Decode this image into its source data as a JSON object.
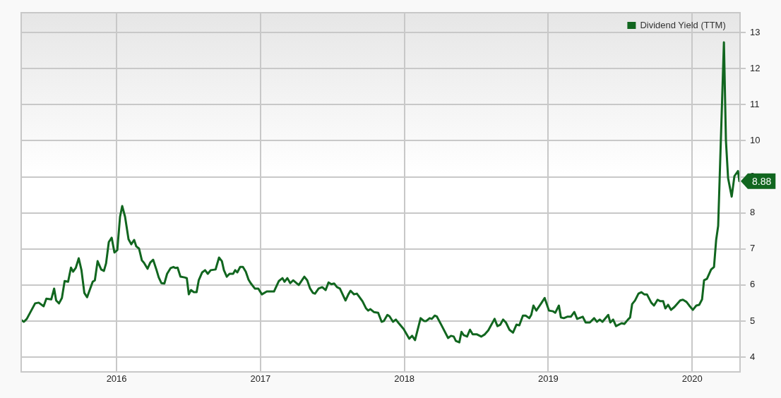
{
  "chart_data": {
    "type": "line",
    "legend": "top right",
    "grid": true,
    "marker": "none",
    "line_style": "solid",
    "xlim": [
      2015.337,
      2020.333
    ],
    "xticks": [
      2016,
      2017,
      2018,
      2019,
      2020
    ],
    "ylim": [
      3.59,
      13.55
    ],
    "yticks": [
      4,
      5,
      6,
      7,
      8,
      9,
      10,
      11,
      12,
      13
    ],
    "annotations": [
      {
        "text": "8.88",
        "x": 2020.328,
        "y": 8.88
      }
    ],
    "series": [
      {
        "name": "Dividend Yield (TTM)",
        "color": "#11661f",
        "x": [
          2015.337,
          2015.356,
          2015.376,
          2015.434,
          2015.459,
          2015.493,
          2015.512,
          2015.546,
          2015.566,
          2015.58,
          2015.6,
          2015.62,
          2015.639,
          2015.663,
          2015.683,
          2015.698,
          2015.717,
          2015.737,
          2015.756,
          2015.776,
          2015.795,
          2015.834,
          2015.849,
          2015.868,
          2015.893,
          2015.912,
          2015.927,
          2015.946,
          2015.966,
          2015.985,
          2016.005,
          2016.024,
          2016.039,
          2016.059,
          2016.083,
          2016.102,
          2016.122,
          2016.137,
          2016.156,
          2016.176,
          2016.19,
          2016.215,
          2016.234,
          2016.254,
          2016.278,
          2016.293,
          2016.312,
          2016.332,
          2016.351,
          2016.376,
          2016.395,
          2016.41,
          2016.424,
          2016.444,
          2016.473,
          2016.488,
          2016.502,
          2016.517,
          2016.537,
          2016.556,
          2016.571,
          2016.595,
          2016.615,
          2016.634,
          2016.654,
          2016.688,
          2016.712,
          2016.732,
          2016.746,
          2016.766,
          2016.785,
          2016.81,
          2016.824,
          2016.839,
          2016.859,
          2016.878,
          2016.898,
          2016.917,
          2016.932,
          2016.961,
          2016.985,
          2017.01,
          2017.044,
          2017.094,
          2017.128,
          2017.153,
          2017.167,
          2017.187,
          2017.207,
          2017.227,
          2017.266,
          2017.305,
          2017.325,
          2017.345,
          2017.365,
          2017.379,
          2017.404,
          2017.429,
          2017.453,
          2017.473,
          2017.493,
          2017.512,
          2017.532,
          2017.552,
          2017.591,
          2017.611,
          2017.626,
          2017.65,
          2017.67,
          2017.709,
          2017.734,
          2017.749,
          2017.764,
          2017.788,
          2017.818,
          2017.842,
          2017.857,
          2017.882,
          2017.897,
          2017.921,
          2017.941,
          2017.961,
          2017.995,
          2018.034,
          2018.054,
          2018.074,
          2018.113,
          2018.137,
          2018.152,
          2018.176,
          2018.191,
          2018.211,
          2018.225,
          2018.26,
          2018.304,
          2018.324,
          2018.343,
          2018.358,
          2018.382,
          2018.397,
          2018.412,
          2018.436,
          2018.456,
          2018.475,
          2018.505,
          2018.534,
          2018.559,
          2018.583,
          2018.627,
          2018.647,
          2018.667,
          2018.686,
          2018.706,
          2018.73,
          2018.755,
          2018.779,
          2018.799,
          2018.824,
          2018.843,
          2018.868,
          2018.882,
          2018.897,
          2018.917,
          2018.951,
          2018.975,
          2019.005,
          2019.034,
          2019.049,
          2019.074,
          2019.088,
          2019.108,
          2019.132,
          2019.157,
          2019.181,
          2019.201,
          2019.24,
          2019.26,
          2019.289,
          2019.319,
          2019.338,
          2019.358,
          2019.377,
          2019.417,
          2019.431,
          2019.451,
          2019.471,
          2019.51,
          2019.529,
          2019.554,
          2019.569,
          2019.583,
          2019.603,
          2019.627,
          2019.647,
          2019.667,
          2019.686,
          2019.716,
          2019.735,
          2019.76,
          2019.779,
          2019.799,
          2019.814,
          2019.833,
          2019.853,
          2019.877,
          2019.917,
          2019.936,
          2019.961,
          2019.98,
          2020.005,
          2020.029,
          2020.049,
          2020.069,
          2020.083,
          2020.103,
          2020.132,
          2020.152,
          2020.167,
          2020.181,
          2020.221,
          2020.235,
          2020.25,
          2020.275,
          2020.294,
          2020.319,
          2020.328
        ],
        "values": [
          5.03,
          4.98,
          5.06,
          5.49,
          5.51,
          5.41,
          5.62,
          5.6,
          5.9,
          5.57,
          5.49,
          5.64,
          6.11,
          6.09,
          6.48,
          6.37,
          6.48,
          6.74,
          6.41,
          5.78,
          5.66,
          6.09,
          6.13,
          6.66,
          6.43,
          6.39,
          6.6,
          7.19,
          7.31,
          6.9,
          6.97,
          7.89,
          8.19,
          7.89,
          7.27,
          7.13,
          7.25,
          7.07,
          7.01,
          6.68,
          6.62,
          6.45,
          6.62,
          6.7,
          6.41,
          6.21,
          6.05,
          6.04,
          6.31,
          6.47,
          6.5,
          6.47,
          6.48,
          6.23,
          6.21,
          6.19,
          5.74,
          5.86,
          5.8,
          5.8,
          6.13,
          6.35,
          6.41,
          6.31,
          6.41,
          6.43,
          6.76,
          6.66,
          6.41,
          6.23,
          6.31,
          6.31,
          6.41,
          6.35,
          6.5,
          6.5,
          6.37,
          6.15,
          6.05,
          5.9,
          5.9,
          5.74,
          5.82,
          5.82,
          6.11,
          6.19,
          6.09,
          6.19,
          6.05,
          6.13,
          6.0,
          6.23,
          6.13,
          5.9,
          5.78,
          5.76,
          5.9,
          5.94,
          5.86,
          6.07,
          6.02,
          6.04,
          5.94,
          5.9,
          5.57,
          5.74,
          5.84,
          5.74,
          5.76,
          5.55,
          5.35,
          5.29,
          5.33,
          5.25,
          5.23,
          4.98,
          5.0,
          5.17,
          5.13,
          4.98,
          5.04,
          4.94,
          4.78,
          4.51,
          4.59,
          4.47,
          5.08,
          5.0,
          5.0,
          5.08,
          5.06,
          5.15,
          5.13,
          4.87,
          4.53,
          4.59,
          4.57,
          4.45,
          4.41,
          4.7,
          4.61,
          4.57,
          4.76,
          4.63,
          4.63,
          4.57,
          4.63,
          4.74,
          5.06,
          4.86,
          4.9,
          5.04,
          4.96,
          4.76,
          4.68,
          4.9,
          4.88,
          5.15,
          5.15,
          5.08,
          5.17,
          5.43,
          5.29,
          5.49,
          5.64,
          5.29,
          5.27,
          5.23,
          5.43,
          5.1,
          5.08,
          5.12,
          5.12,
          5.25,
          5.06,
          5.12,
          4.96,
          4.96,
          5.08,
          4.98,
          5.04,
          4.98,
          5.17,
          4.96,
          5.04,
          4.86,
          4.94,
          4.92,
          5.04,
          5.1,
          5.47,
          5.57,
          5.76,
          5.8,
          5.74,
          5.74,
          5.51,
          5.43,
          5.59,
          5.55,
          5.55,
          5.35,
          5.45,
          5.31,
          5.39,
          5.57,
          5.59,
          5.53,
          5.43,
          5.31,
          5.43,
          5.45,
          5.6,
          6.13,
          6.17,
          6.43,
          6.5,
          7.25,
          7.64,
          12.73,
          10.0,
          8.96,
          8.45,
          9.02,
          9.16,
          8.88
        ]
      }
    ]
  }
}
